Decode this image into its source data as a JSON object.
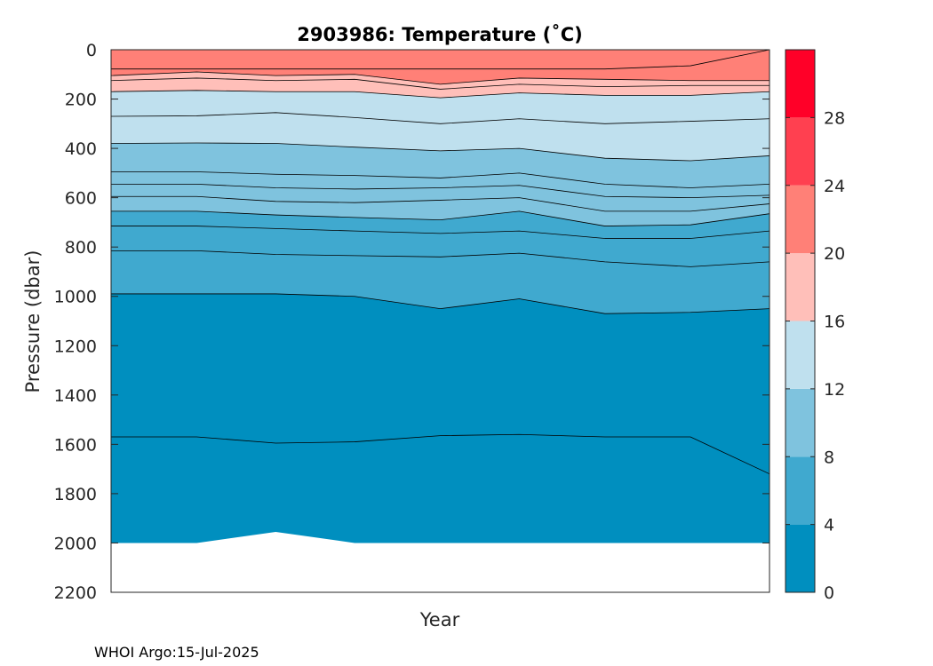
{
  "chart_data": {
    "type": "contour",
    "title": "2903986:  Temperature (˚C)",
    "xlabel": "Year",
    "ylabel": "Pressure (dbar)",
    "ylim": [
      0,
      2200
    ],
    "y_reversed": true,
    "y_ticks": [
      0,
      200,
      400,
      600,
      800,
      1000,
      1200,
      1400,
      1600,
      1800,
      2000,
      2200
    ],
    "x_ticks": [],
    "profile_index": [
      0,
      0.13,
      0.25,
      0.37,
      0.5,
      0.62,
      0.75,
      0.88,
      1.0
    ],
    "max_pressure": [
      2000,
      2000,
      1955,
      2000,
      2000,
      2000,
      2000,
      2000,
      2000
    ],
    "colorbar": {
      "min": 0,
      "max": 32,
      "ticks": [
        0,
        4,
        8,
        12,
        16,
        20,
        24,
        28
      ],
      "bands": [
        {
          "from": 0,
          "to": 4,
          "color": "#008fbf"
        },
        {
          "from": 4,
          "to": 8,
          "color": "#40a9cf"
        },
        {
          "from": 8,
          "to": 12,
          "color": "#7fc3de"
        },
        {
          "from": 12,
          "to": 16,
          "color": "#bfe0ee"
        },
        {
          "from": 16,
          "to": 20,
          "color": "#ffbfb9"
        },
        {
          "from": 20,
          "to": 24,
          "color": "#ff8077"
        },
        {
          "from": 24,
          "to": 28,
          "color": "#ff4050"
        },
        {
          "from": 28,
          "to": 32,
          "color": "#ff0028"
        }
      ]
    },
    "isotherms": [
      {
        "temp": 22,
        "pressure": [
          78,
          78,
          78,
          78,
          78,
          78,
          78,
          65,
          0
        ]
      },
      {
        "temp": 20,
        "pressure": [
          105,
          90,
          105,
          100,
          140,
          115,
          120,
          125,
          125
        ]
      },
      {
        "temp": 18,
        "pressure": [
          125,
          115,
          125,
          120,
          160,
          140,
          150,
          145,
          145
        ]
      },
      {
        "temp": 16,
        "pressure": [
          170,
          165,
          170,
          170,
          195,
          175,
          185,
          185,
          170
        ]
      },
      {
        "temp": 14,
        "pressure": [
          270,
          268,
          255,
          275,
          300,
          280,
          300,
          290,
          280
        ]
      },
      {
        "temp": 12,
        "pressure": [
          380,
          378,
          380,
          395,
          410,
          400,
          440,
          450,
          430
        ]
      },
      {
        "temp": 11,
        "pressure": [
          495,
          495,
          505,
          510,
          520,
          500,
          545,
          560,
          545
        ]
      },
      {
        "temp": 10,
        "pressure": [
          545,
          545,
          560,
          565,
          560,
          550,
          595,
          600,
          590
        ]
      },
      {
        "temp": 9,
        "pressure": [
          595,
          595,
          615,
          620,
          610,
          600,
          655,
          655,
          625
        ]
      },
      {
        "temp": 8,
        "pressure": [
          655,
          655,
          670,
          680,
          690,
          655,
          715,
          710,
          665
        ]
      },
      {
        "temp": 7,
        "pressure": [
          715,
          715,
          725,
          735,
          745,
          735,
          765,
          765,
          735
        ]
      },
      {
        "temp": 6,
        "pressure": [
          815,
          815,
          830,
          835,
          840,
          825,
          860,
          880,
          860
        ]
      },
      {
        "temp": 4,
        "pressure": [
          990,
          990,
          990,
          1000,
          1050,
          1010,
          1070,
          1065,
          1050
        ]
      },
      {
        "temp": 3,
        "pressure": [
          1570,
          1570,
          1595,
          1590,
          1565,
          1560,
          1570,
          1570,
          1720
        ]
      }
    ]
  },
  "footer": {
    "source_label": "WHOI Argo:15-Jul-2025"
  }
}
